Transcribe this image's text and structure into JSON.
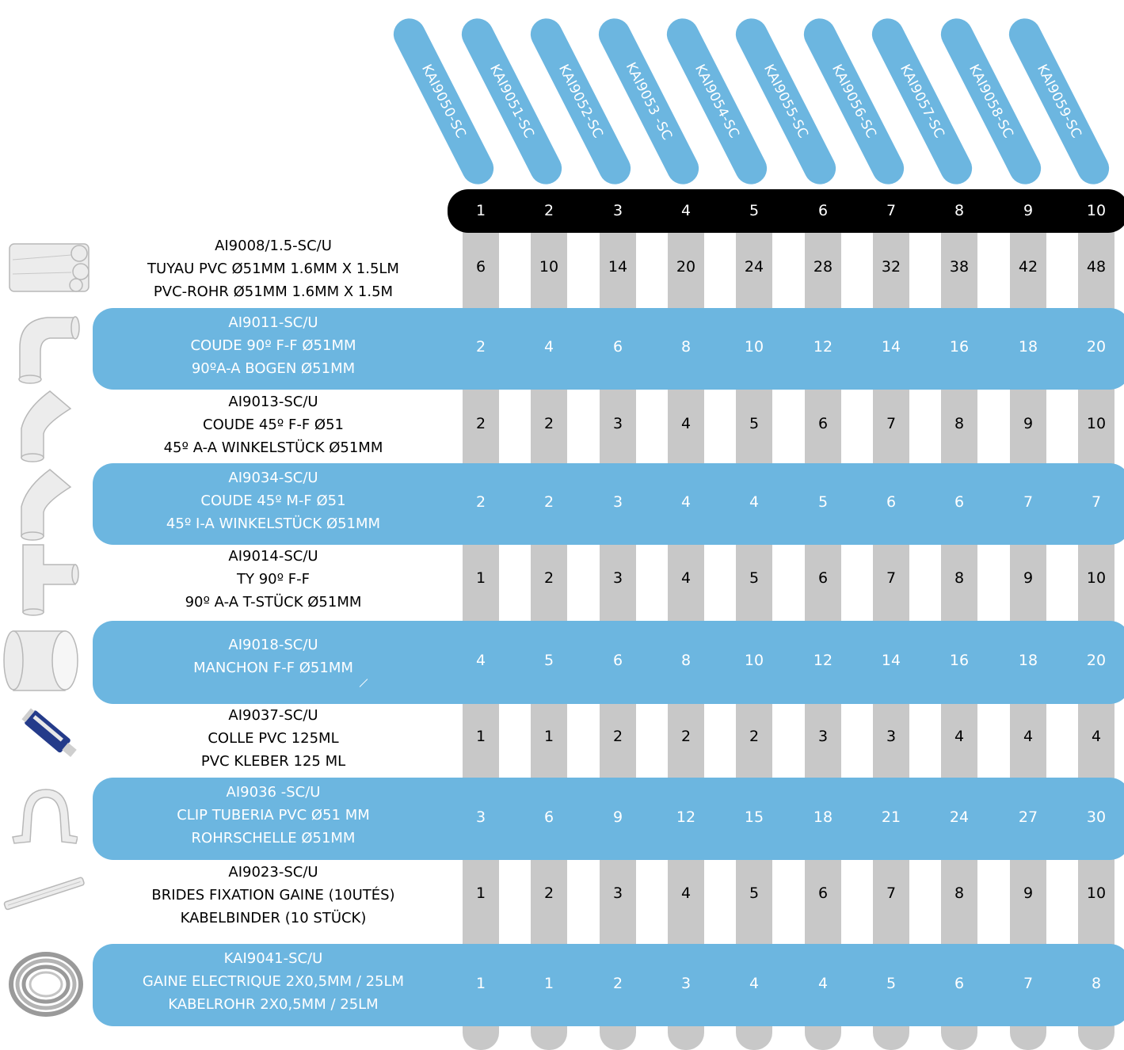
{
  "codes": [
    "KAI9050-SC",
    "KAI9051-SC",
    "KAI9052-SC",
    "KAI9053 -SC",
    "KAI9054-SC",
    "KAI9055-SC",
    "KAI9056-SC",
    "KAI9057-SC",
    "KAI9058-SC",
    "KAI9059-SC"
  ],
  "numbers": [
    "1",
    "2",
    "3",
    "4",
    "5",
    "6",
    "7",
    "8",
    "9",
    "10"
  ],
  "rows": [
    {
      "highlight": false,
      "image": "pvc-pipes-icon",
      "lines": [
        "AI9008/1.5-SC/U",
        "TUYAU PVC Ø51MM 1.6MM X 1.5LM",
        "PVC-ROHR Ø51MM 1.6MM X 1.5M"
      ],
      "values": [
        "6",
        "10",
        "14",
        "20",
        "24",
        "28",
        "32",
        "38",
        "42",
        "48"
      ]
    },
    {
      "highlight": true,
      "image": "elbow-90-icon",
      "lines": [
        "AI9011-SC/U",
        "COUDE 90º F-F Ø51MM",
        "90ºA-A BOGEN Ø51MM"
      ],
      "values": [
        "2",
        "4",
        "6",
        "8",
        "10",
        "12",
        "14",
        "16",
        "18",
        "20"
      ]
    },
    {
      "highlight": false,
      "image": "elbow-45-icon",
      "lines": [
        "AI9013-SC/U",
        "COUDE 45º F-F Ø51",
        "45º A-A WINKELSTÜCK Ø51MM"
      ],
      "values": [
        "2",
        "2",
        "3",
        "4",
        "5",
        "6",
        "7",
        "8",
        "9",
        "10"
      ]
    },
    {
      "highlight": true,
      "image": "elbow-45-mf-icon",
      "lines": [
        "AI9034-SC/U",
        "COUDE 45º M-F Ø51",
        "45º I-A WINKELSTÜCK  Ø51MM"
      ],
      "values": [
        "2",
        "2",
        "3",
        "4",
        "4",
        "5",
        "6",
        "6",
        "7",
        "7"
      ]
    },
    {
      "highlight": false,
      "image": "tee-90-icon",
      "lines": [
        "AI9014-SC/U",
        "TY 90º F-F",
        "90º A-A T-STÜCK Ø51MM"
      ],
      "values": [
        "1",
        "2",
        "3",
        "4",
        "5",
        "6",
        "7",
        "8",
        "9",
        "10"
      ]
    },
    {
      "highlight": true,
      "image": "sleeve-icon",
      "lines": [
        "AI9018-SC/U",
        "MANCHON F-F Ø51MM"
      ],
      "values": [
        "4",
        "5",
        "6",
        "8",
        "10",
        "12",
        "14",
        "16",
        "18",
        "20"
      ]
    },
    {
      "highlight": false,
      "image": "glue-tube-icon",
      "lines": [
        "AI9037-SC/U",
        "COLLE PVC 125ML",
        "PVC KLEBER 125 ML"
      ],
      "values": [
        "1",
        "1",
        "2",
        "2",
        "2",
        "3",
        "3",
        "4",
        "4",
        "4"
      ]
    },
    {
      "highlight": true,
      "image": "pipe-clip-icon",
      "lines": [
        "AI9036 -SC/U",
        "CLIP TUBERIA PVC Ø51 MM",
        "ROHRSCHELLE Ø51MM"
      ],
      "values": [
        "3",
        "6",
        "9",
        "12",
        "15",
        "18",
        "21",
        "24",
        "27",
        "30"
      ]
    },
    {
      "highlight": false,
      "image": "cable-ties-icon",
      "lines": [
        "AI9023-SC/U",
        "BRIDES FIXATION GAINE (10UTÉS)",
        "KABELBINDER (10 STÜCK)"
      ],
      "values": [
        "1",
        "2",
        "3",
        "4",
        "5",
        "6",
        "7",
        "8",
        "9",
        "10"
      ]
    },
    {
      "highlight": true,
      "image": "cable-coil-icon",
      "lines": [
        "KAI9041-SC/U",
        "GAINE ELECTRIQUE 2X0,5MM / 25LM",
        "KABELROHR 2X0,5MM / 25LM"
      ],
      "values": [
        "1",
        "1",
        "2",
        "3",
        "4",
        "4",
        "5",
        "6",
        "7",
        "8"
      ]
    }
  ],
  "colors": {
    "accent": "#6cb6e0",
    "bar": "#c8c8c8",
    "header": "#000000"
  }
}
